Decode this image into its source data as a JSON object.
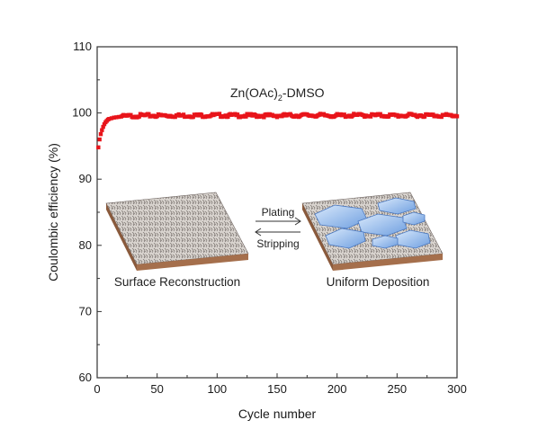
{
  "chart_data": {
    "type": "scatter",
    "xlabel": "Cycle number",
    "ylabel": "Coulombic efficiency (%)",
    "xlim": [
      0,
      300
    ],
    "ylim": [
      60,
      110
    ],
    "xticks": [
      0,
      50,
      100,
      150,
      200,
      250,
      300
    ],
    "yticks": [
      60,
      70,
      80,
      90,
      100,
      110
    ],
    "grid": false,
    "series": [
      {
        "name": "Zn(OAc)2-DMSO",
        "color": "#e8141a",
        "marker": "square",
        "x": [
          1,
          2,
          3,
          4,
          5,
          6,
          7,
          8,
          9,
          10,
          12,
          14,
          16,
          18,
          20,
          25,
          30,
          35,
          40,
          50,
          60,
          80,
          100,
          120,
          150,
          180,
          200,
          220,
          250,
          270,
          300
        ],
        "y": [
          94.8,
          96.0,
          96.8,
          97.4,
          97.9,
          98.3,
          98.6,
          98.8,
          99.0,
          99.1,
          99.2,
          99.3,
          99.35,
          99.4,
          99.45,
          99.5,
          99.55,
          99.6,
          99.6,
          99.6,
          99.6,
          99.6,
          99.65,
          99.6,
          99.6,
          99.65,
          99.6,
          99.65,
          99.6,
          99.65,
          99.6
        ]
      }
    ],
    "annotations": {
      "series_label": "Zn(OAc)",
      "series_label_sub": "2",
      "series_label_suffix": "-DMSO",
      "left_panel": "Surface Reconstruction",
      "right_panel": "Uniform Deposition",
      "arrow_top": "Plating",
      "arrow_bottom": "Stripping"
    }
  }
}
